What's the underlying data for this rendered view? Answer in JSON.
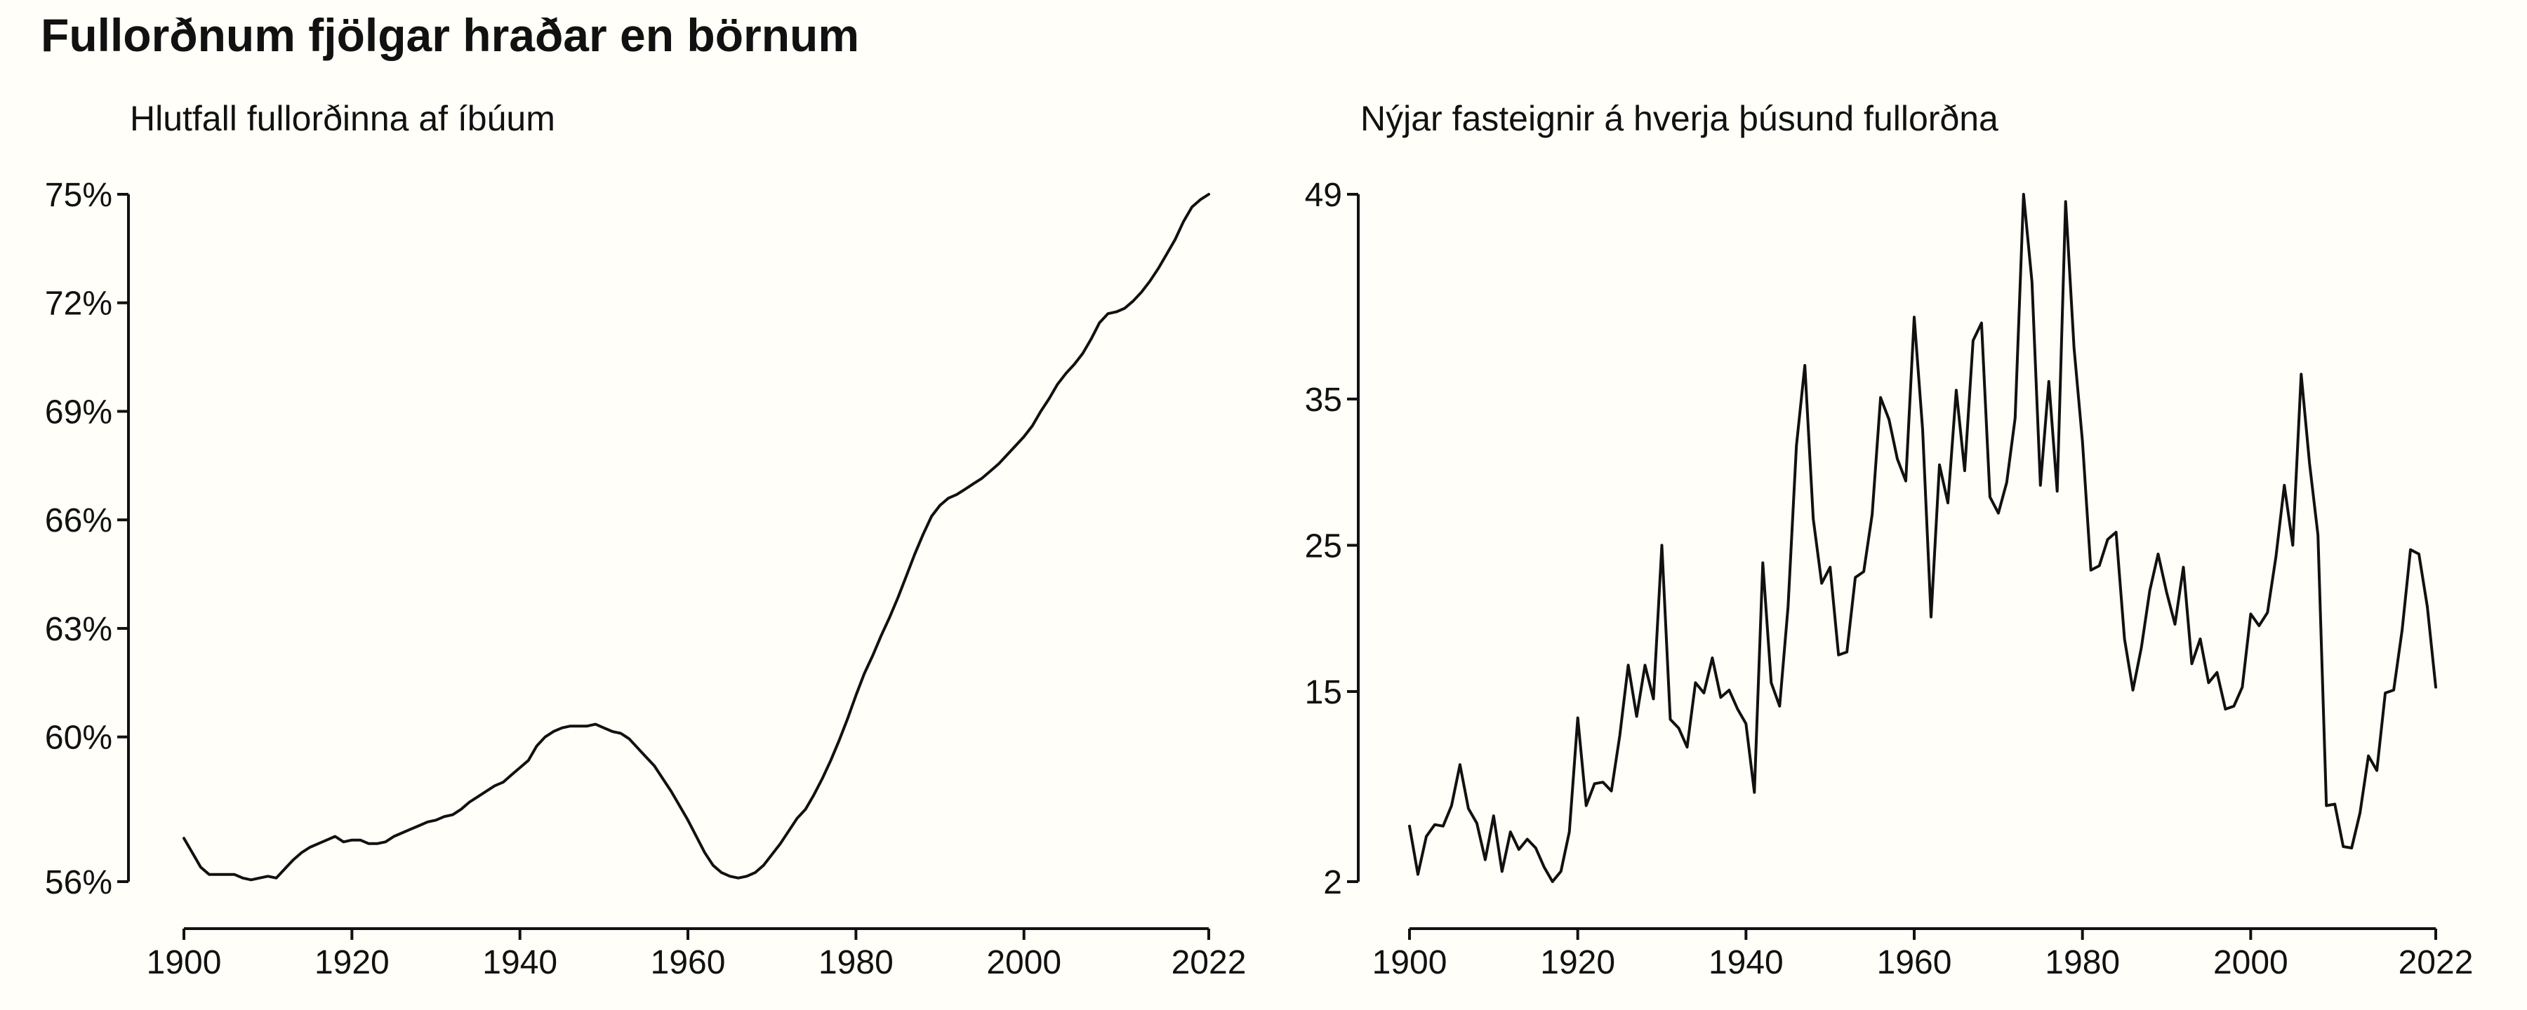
{
  "title": "Fullorðnum fjölgar hraðar en börnum",
  "colors": {
    "background": "#fffef8",
    "line": "#111111"
  },
  "chart_data": [
    {
      "type": "line",
      "title": "Hlutfall fullorðinna af íbúum",
      "xlabel": "",
      "ylabel": "",
      "xlim": [
        1900,
        2022
      ],
      "ylim": [
        56,
        75
      ],
      "unit": "%",
      "x_ticks": [
        1900,
        1920,
        1940,
        1960,
        1980,
        2000,
        2022
      ],
      "y_ticks": [
        56,
        60,
        63,
        66,
        69,
        72,
        75
      ],
      "y_tick_labels": [
        "56%",
        "60%",
        "63%",
        "66%",
        "69%",
        "72%",
        "75%"
      ],
      "grid": false,
      "legend": "none",
      "x": [
        1900,
        1901,
        1902,
        1903,
        1904,
        1905,
        1906,
        1907,
        1908,
        1909,
        1910,
        1911,
        1912,
        1913,
        1914,
        1915,
        1916,
        1917,
        1918,
        1919,
        1920,
        1921,
        1922,
        1923,
        1924,
        1925,
        1926,
        1927,
        1928,
        1929,
        1930,
        1931,
        1932,
        1933,
        1934,
        1935,
        1936,
        1937,
        1938,
        1939,
        1940,
        1941,
        1942,
        1943,
        1944,
        1945,
        1946,
        1947,
        1948,
        1949,
        1950,
        1951,
        1952,
        1953,
        1954,
        1955,
        1956,
        1957,
        1958,
        1959,
        1960,
        1961,
        1962,
        1963,
        1964,
        1965,
        1966,
        1967,
        1968,
        1969,
        1970,
        1971,
        1972,
        1973,
        1974,
        1975,
        1976,
        1977,
        1978,
        1979,
        1980,
        1981,
        1982,
        1983,
        1984,
        1985,
        1986,
        1987,
        1988,
        1989,
        1990,
        1991,
        1992,
        1993,
        1994,
        1995,
        1996,
        1997,
        1998,
        1999,
        2000,
        2001,
        2002,
        2003,
        2004,
        2005,
        2006,
        2007,
        2008,
        2009,
        2010,
        2011,
        2012,
        2013,
        2014,
        2015,
        2016,
        2017,
        2018,
        2019,
        2020,
        2021,
        2022
      ],
      "values": [
        57.2,
        56.8,
        56.4,
        56.2,
        56.2,
        56.2,
        56.2,
        56.1,
        56.05,
        56.1,
        56.15,
        56.1,
        56.35,
        56.6,
        56.8,
        56.95,
        57.05,
        57.15,
        57.25,
        57.1,
        57.15,
        57.15,
        57.05,
        57.05,
        57.1,
        57.25,
        57.35,
        57.45,
        57.55,
        57.65,
        57.7,
        57.8,
        57.85,
        58.0,
        58.2,
        58.35,
        58.5,
        58.65,
        58.75,
        58.95,
        59.15,
        59.35,
        59.75,
        60.0,
        60.15,
        60.25,
        60.3,
        60.3,
        60.3,
        60.35,
        60.25,
        60.15,
        60.1,
        59.95,
        59.7,
        59.45,
        59.2,
        58.85,
        58.5,
        58.1,
        57.7,
        57.25,
        56.8,
        56.45,
        56.25,
        56.15,
        56.1,
        56.15,
        56.25,
        56.45,
        56.75,
        57.05,
        57.4,
        57.75,
        58.0,
        58.4,
        58.85,
        59.35,
        59.9,
        60.5,
        61.15,
        61.75,
        62.25,
        62.8,
        63.3,
        63.85,
        64.45,
        65.05,
        65.6,
        66.1,
        66.4,
        66.6,
        66.7,
        66.85,
        67.0,
        67.15,
        67.35,
        67.55,
        67.8,
        68.05,
        68.3,
        68.6,
        69.0,
        69.35,
        69.75,
        70.05,
        70.3,
        70.6,
        71.0,
        71.45,
        71.7,
        71.75,
        71.85,
        72.05,
        72.3,
        72.6,
        72.95,
        73.35,
        73.75,
        74.25,
        74.65,
        74.85,
        75.0
      ]
    },
    {
      "type": "line",
      "title": "Nýjar fasteignir á hverja þúsund fullorðna",
      "xlabel": "",
      "ylabel": "",
      "xlim": [
        1900,
        2022
      ],
      "ylim": [
        2,
        49
      ],
      "x_ticks": [
        1900,
        1920,
        1940,
        1960,
        1980,
        2000,
        2022
      ],
      "y_ticks": [
        2,
        15,
        25,
        35,
        49
      ],
      "y_tick_labels": [
        "2",
        "15",
        "25",
        "35",
        "49"
      ],
      "grid": false,
      "legend": "none",
      "x": [
        1900,
        1901,
        1902,
        1903,
        1904,
        1905,
        1906,
        1907,
        1908,
        1909,
        1910,
        1911,
        1912,
        1913,
        1914,
        1915,
        1916,
        1917,
        1918,
        1919,
        1920,
        1921,
        1922,
        1923,
        1924,
        1925,
        1926,
        1927,
        1928,
        1929,
        1930,
        1931,
        1932,
        1933,
        1934,
        1935,
        1936,
        1937,
        1938,
        1939,
        1940,
        1941,
        1942,
        1943,
        1944,
        1945,
        1946,
        1947,
        1948,
        1949,
        1950,
        1951,
        1952,
        1953,
        1954,
        1955,
        1956,
        1957,
        1958,
        1959,
        1960,
        1961,
        1962,
        1963,
        1964,
        1965,
        1966,
        1967,
        1968,
        1969,
        1970,
        1971,
        1972,
        1973,
        1974,
        1975,
        1976,
        1977,
        1978,
        1979,
        1980,
        1981,
        1982,
        1983,
        1984,
        1985,
        1986,
        1987,
        1988,
        1989,
        1990,
        1991,
        1992,
        1993,
        1994,
        1995,
        1996,
        1997,
        1998,
        1999,
        2000,
        2001,
        2002,
        2003,
        2004,
        2005,
        2006,
        2007,
        2008,
        2009,
        2010,
        2011,
        2012,
        2013,
        2014,
        2015,
        2016,
        2017,
        2018,
        2019,
        2020,
        2021,
        2022
      ],
      "values": [
        5.8,
        2.5,
        5.1,
        5.9,
        5.8,
        7.2,
        10.0,
        7.0,
        6.0,
        3.5,
        6.5,
        2.7,
        5.4,
        4.2,
        4.9,
        4.3,
        3.0,
        2.0,
        2.7,
        5.4,
        13.2,
        7.2,
        8.7,
        8.8,
        8.2,
        12.0,
        16.8,
        13.3,
        16.8,
        14.5,
        25.0,
        13.1,
        12.5,
        11.2,
        15.6,
        14.9,
        17.3,
        14.6,
        15.1,
        13.8,
        12.8,
        8.1,
        23.8,
        15.6,
        14.0,
        20.8,
        31.8,
        37.3,
        26.8,
        22.4,
        23.5,
        17.5,
        17.7,
        22.8,
        23.2,
        27.1,
        35.1,
        33.6,
        30.9,
        29.4,
        40.6,
        32.9,
        20.1,
        30.5,
        27.9,
        35.6,
        30.1,
        39.0,
        40.2,
        28.3,
        27.2,
        29.3,
        33.7,
        49.0,
        43.0,
        29.1,
        36.2,
        28.7,
        48.5,
        38.5,
        32.1,
        23.3,
        23.6,
        25.4,
        25.9,
        18.6,
        15.1,
        18.0,
        21.9,
        24.4,
        21.8,
        19.6,
        23.5,
        16.9,
        18.6,
        15.6,
        16.3,
        13.8,
        14.0,
        15.3,
        20.3,
        19.5,
        20.4,
        24.2,
        29.1,
        25.0,
        36.7,
        30.6,
        25.7,
        7.2,
        7.3,
        4.4,
        4.3,
        6.7,
        10.6,
        9.6,
        14.9,
        15.1,
        19.2,
        24.7,
        24.4,
        20.8,
        15.3
      ]
    }
  ]
}
